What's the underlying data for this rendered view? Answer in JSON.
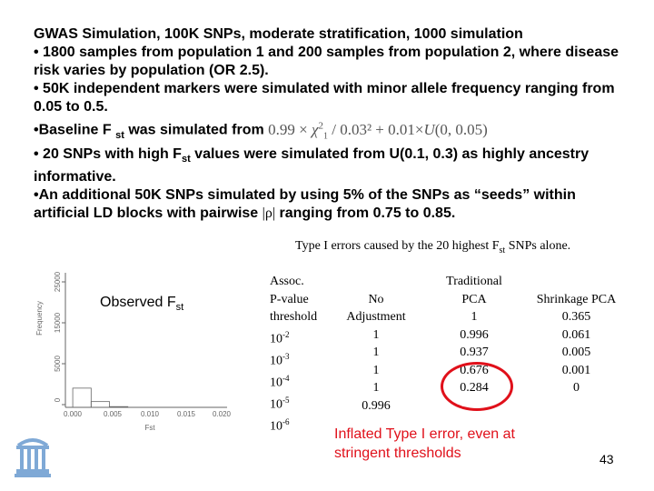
{
  "slide": {
    "heading": "GWAS Simulation, 100K SNPs, moderate stratification, 1000 simulation",
    "bullets": [
      "• 1800 samples from population 1 and 200 samples from population 2, where disease risk varies by population (OR 2.5).",
      "• 50K independent markers were simulated with minor allele frequency ranging from 0.05 to 0.5."
    ],
    "bullet3": {
      "prefix": "•Baseline F",
      "fst_main": "",
      "fst_sub": "st",
      "suffix": "was simulated from"
    },
    "formula": {
      "part1": "0.99 × ",
      "chi": "χ",
      "chi_sup": "2",
      "chi_sub": "1",
      "part2": " / 0.03² + 0.01×",
      "u": "U",
      "part3": "(0, 0.05)"
    },
    "bullet4": {
      "prefix": "• 20 SNPs with high F",
      "fst_sub": "st",
      "suffix": " values were simulated from  U(0.1, 0.3) as highly ancestry informative."
    },
    "bullet5": {
      "prefix": "•An additional 50K SNPs simulated by using 5% of the SNPs as “seeds” within artificial LD blocks with pairwise ",
      "rho": "|ρ|",
      "suffix": " ranging from 0.75 to 0.85."
    },
    "page_number": "43"
  },
  "histogram": {
    "label_main": "Observed F",
    "label_sub": "st",
    "ylabel": "Frequency",
    "xlabel": "Fst",
    "yticks": [
      "0",
      "5000",
      "15000",
      "25000"
    ],
    "xticks": [
      "0.000",
      "0.005",
      "0.010",
      "0.015",
      "0.020"
    ],
    "bins_x_start": [
      0.0,
      0.0025,
      0.005
    ],
    "bins_width": 0.0025,
    "bins_counts": [
      4000,
      1200,
      150
    ],
    "xlim": [
      -0.001,
      0.021
    ],
    "ylim": [
      0,
      28000
    ]
  },
  "table": {
    "caption": {
      "prefix": "Type I errors caused by the 20 highest F",
      "sub": "st",
      "suffix": " SNPs alone."
    },
    "col1_header": [
      "Assoc.",
      "P-value",
      "threshold"
    ],
    "col2_header": [
      "No",
      "Adjustment"
    ],
    "col3_header": [
      "Traditional",
      "PCA"
    ],
    "col4_header": "Shrinkage PCA",
    "rows": [
      {
        "base": "10",
        "exp": "-2",
        "no_adj": "1",
        "trad": "1",
        "shrink": "0.365"
      },
      {
        "base": "10",
        "exp": "-3",
        "no_adj": "1",
        "trad": "0.996",
        "shrink": "0.061"
      },
      {
        "base": "10",
        "exp": "-4",
        "no_adj": "1",
        "trad": "0.937",
        "shrink": "0.005"
      },
      {
        "base": "10",
        "exp": "-5",
        "no_adj": "1",
        "trad": "0.676",
        "shrink": "0.001"
      },
      {
        "base": "10",
        "exp": "-6",
        "no_adj": "0.996",
        "trad": "0.284",
        "shrink": "0"
      }
    ]
  },
  "annotation": {
    "lines": [
      "Inflated Type I error, even at",
      "stringent thresholds"
    ],
    "color": "#e0101a"
  }
}
